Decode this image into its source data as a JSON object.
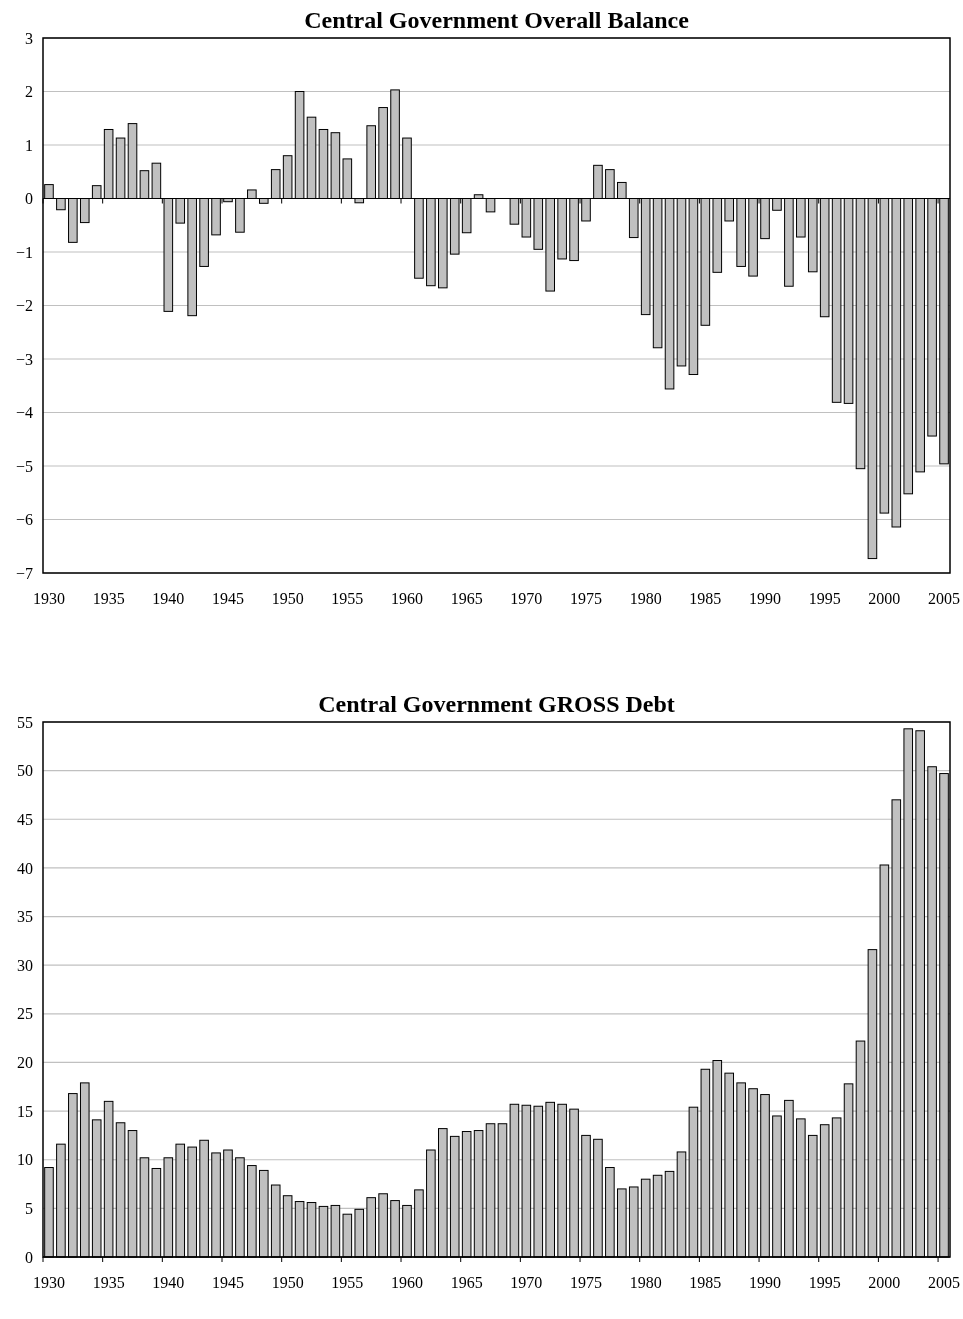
{
  "chart_data": [
    {
      "type": "bar",
      "title": "Central Government Overall Balance",
      "color": "#c0c0c0",
      "grid": "y",
      "ylim": [
        -7,
        3
      ],
      "yticks": [
        {
          "value": -7,
          "label": "−7"
        },
        {
          "value": -6,
          "label": "−6"
        },
        {
          "value": -5,
          "label": "−5"
        },
        {
          "value": -4,
          "label": "−4"
        },
        {
          "value": -3,
          "label": "−3"
        },
        {
          "value": -2,
          "label": "−2"
        },
        {
          "value": -1,
          "label": "−1"
        },
        0,
        1,
        2,
        3
      ],
      "categories": [
        "1930",
        null,
        null,
        null,
        null,
        "1935",
        null,
        null,
        null,
        null,
        "1940",
        null,
        null,
        null,
        null,
        "1945",
        null,
        null,
        null,
        null,
        "1950",
        null,
        null,
        null,
        null,
        "1955",
        null,
        null,
        null,
        null,
        "1960",
        null,
        null,
        null,
        null,
        "1965",
        null,
        null,
        null,
        null,
        "1970",
        null,
        null,
        null,
        null,
        "1975",
        null,
        null,
        null,
        null,
        "1980",
        null,
        null,
        null,
        null,
        "1985",
        null,
        null,
        null,
        null,
        "1990",
        null,
        null,
        null,
        null,
        "1995",
        null,
        null,
        null,
        null,
        "2000",
        null,
        null,
        null,
        null,
        "2005"
      ],
      "values": [
        0.26,
        -0.21,
        -0.82,
        -0.45,
        0.24,
        1.29,
        1.13,
        1.4,
        0.52,
        0.66,
        -2.11,
        -0.46,
        -2.19,
        -1.27,
        -0.68,
        -0.06,
        -0.63,
        0.16,
        -0.09,
        0.54,
        0.8,
        2.0,
        1.52,
        1.29,
        1.23,
        0.74,
        -0.08,
        1.36,
        1.7,
        2.03,
        1.13,
        -1.49,
        -1.63,
        -1.67,
        -1.04,
        -0.64,
        0.07,
        -0.25,
        null,
        -0.48,
        -0.72,
        -0.95,
        -1.73,
        -1.13,
        -1.16,
        -0.42,
        0.62,
        0.54,
        0.3,
        -0.73,
        -2.17,
        -2.79,
        -3.56,
        -3.13,
        -3.29,
        -2.37,
        -1.38,
        -0.42,
        -1.27,
        -1.45,
        -0.75,
        -0.22,
        -1.64,
        -0.72,
        -1.37,
        -2.21,
        -3.81,
        -3.83,
        -5.05,
        -6.73,
        -5.88,
        -6.14,
        -5.52,
        -5.11,
        -4.44,
        -4.96
      ]
    },
    {
      "type": "bar",
      "title": "Central Government GROSS Debt",
      "color": "#c0c0c0",
      "grid": "y",
      "ylim": [
        0,
        55
      ],
      "yticks": [
        0,
        5,
        10,
        15,
        20,
        25,
        30,
        35,
        40,
        45,
        50,
        55
      ],
      "categories": [
        "1930",
        null,
        null,
        null,
        null,
        "1935",
        null,
        null,
        null,
        null,
        "1940",
        null,
        null,
        null,
        null,
        "1945",
        null,
        null,
        null,
        null,
        "1950",
        null,
        null,
        null,
        null,
        "1955",
        null,
        null,
        null,
        null,
        "1960",
        null,
        null,
        null,
        null,
        "1965",
        null,
        null,
        null,
        null,
        "1970",
        null,
        null,
        null,
        null,
        "1975",
        null,
        null,
        null,
        null,
        "1980",
        null,
        null,
        null,
        null,
        "1985",
        null,
        null,
        null,
        null,
        "1990",
        null,
        null,
        null,
        null,
        "1995",
        null,
        null,
        null,
        null,
        "2000",
        null,
        null,
        null,
        null,
        "2005"
      ],
      "values": [
        9.2,
        11.6,
        16.8,
        17.9,
        14.1,
        16.0,
        13.8,
        13.0,
        10.2,
        9.1,
        10.2,
        11.6,
        11.3,
        12.0,
        10.7,
        11.0,
        10.2,
        9.4,
        8.9,
        7.4,
        6.3,
        5.7,
        5.6,
        5.2,
        5.3,
        4.4,
        4.9,
        6.1,
        6.5,
        5.8,
        5.3,
        6.9,
        11.0,
        13.2,
        12.4,
        12.9,
        13.0,
        13.7,
        13.7,
        15.7,
        15.6,
        15.5,
        15.9,
        15.7,
        15.2,
        12.5,
        12.1,
        9.2,
        7.0,
        7.2,
        8.0,
        8.4,
        8.8,
        10.8,
        15.4,
        19.3,
        20.2,
        18.9,
        17.9,
        17.3,
        16.7,
        14.5,
        16.1,
        14.2,
        12.5,
        13.6,
        14.3,
        17.8,
        22.2,
        31.6,
        40.3,
        47.0,
        54.3,
        54.1,
        50.4,
        49.7
      ]
    }
  ]
}
